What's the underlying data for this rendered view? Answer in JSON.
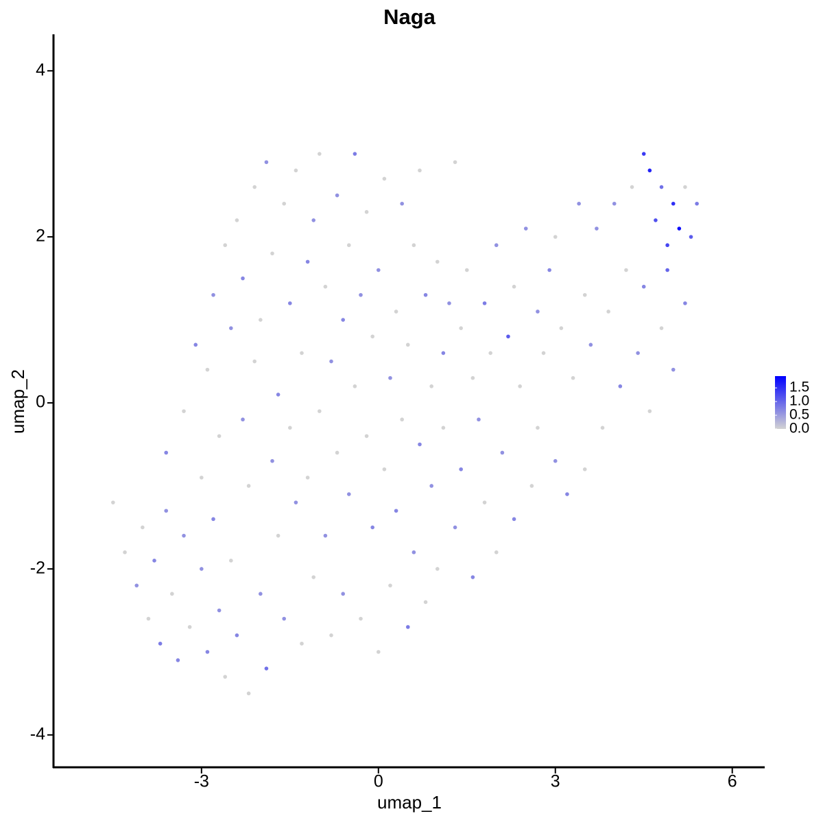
{
  "chart_data": {
    "type": "scatter",
    "title": "Naga",
    "x_label": "umap_1",
    "y_label": "umap_2",
    "xlim": [
      -5.51,
      6.55
    ],
    "ylim": [
      -4.39,
      4.44
    ],
    "xticks": [
      -3,
      0,
      3,
      6
    ],
    "yticks": [
      -4,
      -2,
      0,
      2,
      4
    ],
    "colors": [
      "#d3d3d3",
      "#0000ff"
    ],
    "colorlim": [
      0,
      1.93
    ],
    "colorticks": [
      {
        "value": 0,
        "label": "0.0"
      },
      0.5,
      {
        "value": 1,
        "label": "1.0"
      },
      1.5
    ],
    "x": [
      -4.5,
      -4.3,
      -4.1,
      -4.0,
      -3.9,
      -3.8,
      -3.7,
      -3.6,
      -3.6,
      -3.5,
      -3.4,
      -3.3,
      -3.3,
      -3.2,
      -3.1,
      -3.0,
      -3.0,
      -2.9,
      -2.9,
      -2.8,
      -2.8,
      -2.7,
      -2.7,
      -2.6,
      -2.6,
      -2.5,
      -2.5,
      -2.4,
      -2.4,
      -2.3,
      -2.3,
      -2.2,
      -2.2,
      -2.1,
      -2.1,
      -2.0,
      -2.0,
      -1.9,
      -1.9,
      -1.8,
      -1.8,
      -1.7,
      -1.7,
      -1.6,
      -1.6,
      -1.5,
      -1.5,
      -1.4,
      -1.4,
      -1.3,
      -1.3,
      -1.2,
      -1.2,
      -1.1,
      -1.1,
      -1.0,
      -1.0,
      -0.9,
      -0.9,
      -0.8,
      -0.8,
      -0.7,
      -0.7,
      -0.6,
      -0.6,
      -0.5,
      -0.5,
      -0.4,
      -0.4,
      -0.3,
      -0.3,
      -0.2,
      -0.2,
      -0.1,
      -0.1,
      0.0,
      0.0,
      0.1,
      0.1,
      0.2,
      0.2,
      0.3,
      0.3,
      0.4,
      0.4,
      0.5,
      0.5,
      0.6,
      0.6,
      0.7,
      0.7,
      0.8,
      0.8,
      0.9,
      0.9,
      1.0,
      1.0,
      1.1,
      1.1,
      1.2,
      1.3,
      1.3,
      1.4,
      1.4,
      1.5,
      1.6,
      1.6,
      1.7,
      1.8,
      1.8,
      1.9,
      2.0,
      2.0,
      2.1,
      2.2,
      2.3,
      2.3,
      2.4,
      2.5,
      2.6,
      2.7,
      2.7,
      2.8,
      2.9,
      3.0,
      3.0,
      3.1,
      3.2,
      3.3,
      3.4,
      3.5,
      3.5,
      3.6,
      3.7,
      3.8,
      3.9,
      4.0,
      4.1,
      4.2,
      4.3,
      4.4,
      4.5,
      4.5,
      4.6,
      4.6,
      4.7,
      4.8,
      4.8,
      4.9,
      5.0,
      5.0,
      5.1,
      5.2,
      5.3,
      5.4,
      5.2,
      4.9
    ],
    "values": [
      -1.2,
      -1.8,
      -2.2,
      -1.5,
      -2.6,
      -1.9,
      -2.9,
      -1.3,
      -0.6,
      -2.3,
      -3.1,
      -1.6,
      -0.1,
      -2.7,
      0.7,
      -0.9,
      -2.0,
      -3.0,
      0.4,
      1.3,
      -1.4,
      -2.5,
      -0.4,
      1.9,
      -3.3,
      0.9,
      -1.9,
      -2.8,
      2.2,
      -0.2,
      1.5,
      -1.0,
      -3.5,
      2.6,
      0.5,
      -2.3,
      1.0,
      -3.2,
      2.9,
      -0.7,
      1.8,
      -1.6,
      0.1,
      2.4,
      -2.6,
      1.2,
      -0.3,
      2.8,
      -1.2,
      -2.9,
      0.6,
      1.7,
      -0.9,
      2.2,
      -2.1,
      -0.1,
      3.0,
      1.4,
      -1.6,
      0.5,
      -2.8,
      2.5,
      -0.6,
      1.0,
      -2.3,
      1.9,
      -1.1,
      0.2,
      3.0,
      -2.6,
      1.3,
      -0.4,
      2.3,
      -1.5,
      0.8,
      -3.0,
      1.6,
      -0.8,
      2.7,
      0.3,
      -2.2,
      1.1,
      -1.3,
      2.4,
      -0.2,
      -2.7,
      0.7,
      1.9,
      -1.8,
      -0.5,
      2.8,
      1.3,
      -2.4,
      0.2,
      -1.0,
      1.7,
      -2.0,
      0.6,
      -0.3,
      1.2,
      -1.5,
      2.9,
      0.9,
      -0.8,
      1.6,
      -2.1,
      0.3,
      -0.2,
      1.2,
      -1.2,
      0.6,
      1.9,
      -1.8,
      -0.6,
      0.8,
      1.4,
      -1.4,
      0.2,
      2.1,
      -1.0,
      1.1,
      -0.3,
      0.6,
      1.6,
      -0.7,
      2.0,
      0.9,
      -1.1,
      0.3,
      2.4,
      1.3,
      -0.8,
      0.7,
      2.1,
      -0.3,
      1.1,
      2.4,
      0.2,
      1.6,
      2.6,
      0.6,
      3.0,
      1.4,
      2.8,
      -0.1,
      2.2,
      0.9,
      2.6,
      1.9,
      2.4,
      0.4,
      2.1,
      1.2,
      2.0,
      2.4,
      2.6,
      1.6
    ],
    "expression": [
      0,
      0,
      0.6,
      0,
      0,
      0.7,
      0.8,
      0.6,
      0.7,
      0,
      0.7,
      0.6,
      0,
      0,
      0.7,
      0,
      0.6,
      0.7,
      0,
      0.6,
      0.7,
      0.6,
      0,
      0,
      0,
      0.6,
      0,
      0.7,
      0,
      0.6,
      0.7,
      0,
      0,
      0,
      0,
      0.6,
      0,
      0.9,
      0.6,
      0.6,
      0,
      0,
      0.7,
      0,
      0.6,
      0.7,
      0,
      0,
      0.6,
      0,
      0,
      0.7,
      0,
      0.6,
      0,
      0,
      0,
      0,
      0.6,
      0.6,
      0,
      0.6,
      0,
      0.7,
      0.6,
      0,
      0.6,
      0,
      0.8,
      0,
      0.6,
      0,
      0,
      0.7,
      0,
      0,
      0.6,
      0,
      0,
      0.6,
      0,
      0,
      0.7,
      0.6,
      0,
      0.8,
      0,
      0,
      0.6,
      0.7,
      0,
      0.7,
      0,
      0,
      0.6,
      0,
      0,
      0.7,
      0,
      0.6,
      0.6,
      0,
      0,
      0.7,
      0,
      0.7,
      0,
      0.6,
      0.8,
      0,
      0,
      0.6,
      0,
      0.6,
      1.1,
      0,
      0.7,
      0,
      0.6,
      0,
      0.6,
      0,
      0,
      0.7,
      0.6,
      0,
      0,
      0.7,
      0,
      0.6,
      0,
      0,
      0.6,
      0.6,
      0,
      0,
      0.6,
      0.7,
      0,
      0,
      0.6,
      1.4,
      0.7,
      1.6,
      0,
      1.2,
      0,
      0.9,
      1.3,
      1.5,
      0.6,
      1.8,
      0.7,
      1.1,
      0.8,
      0,
      1.0
    ]
  }
}
